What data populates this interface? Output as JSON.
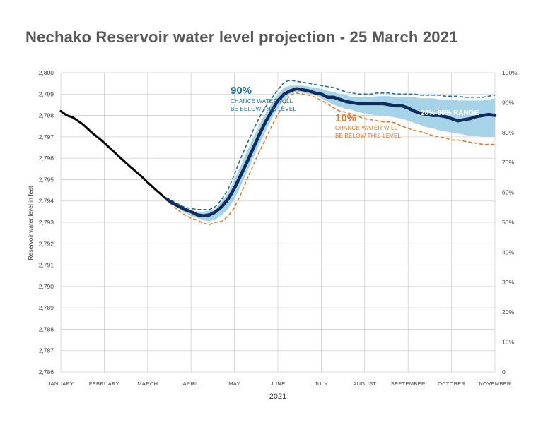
{
  "chart_data": {
    "type": "line",
    "title": "Nechako Reservoir water level projection - 25 March 2021",
    "xlabel": "2021",
    "ylabel": "Reservoir water level in feet",
    "ylim": [
      2786,
      2800
    ],
    "y2lim": [
      0,
      100
    ],
    "y_ticks": [
      "2,786",
      "2,787",
      "2,788",
      "2,789",
      "2,790",
      "2,791",
      "2,792",
      "2,793",
      "2,794",
      "2,795",
      "2,796",
      "2,797",
      "2,798",
      "2,799",
      "2,800"
    ],
    "y2_ticks": [
      "0",
      "10%",
      "20%",
      "30%",
      "40%",
      "50%",
      "60%",
      "70%",
      "80%",
      "90%",
      "100%"
    ],
    "months": [
      "JANUARY",
      "FEBRUARY",
      "MARCH",
      "APRIL",
      "MAY",
      "JUNE",
      "JULY",
      "AUGUST",
      "SEPTEMBER",
      "OCTOBER",
      "NOVEMBER"
    ],
    "grid": true,
    "colors": {
      "historical": "#000000",
      "median": "#0f2d5c",
      "p90": "#1f6fa3",
      "p10": "#e87722",
      "band": "#a6d3e8",
      "grid": "#cfcfcf",
      "title": "#58595b"
    },
    "annotations": {
      "p90_big": "90%",
      "p90_line1": "CHANCE WATER WILL",
      "p90_line2": "BE BELOW THIS LEVEL",
      "p10_big": "10%",
      "p10_line1": "CHANCE WATER WILL",
      "p10_line2": "BE BELOW THIS LEVEL",
      "range": "20%-80% RANGE"
    },
    "series": [
      {
        "key": "historical",
        "style": "solid",
        "x": [
          0,
          10,
          20,
          35,
          50,
          65,
          80,
          95,
          110,
          130,
          150,
          170
        ],
        "y": [
          2798.2,
          2798.0,
          2797.9,
          2797.6,
          2797.2,
          2796.85,
          2796.45,
          2796.05,
          2795.65,
          2795.15,
          2794.6,
          2794.1
        ]
      },
      {
        "key": "median",
        "style": "solid",
        "x": [
          170,
          180,
          190,
          200,
          210,
          220,
          230,
          240,
          250,
          260,
          270,
          280,
          290,
          300,
          310,
          320,
          330,
          340,
          350,
          360,
          370,
          380,
          390,
          400,
          410,
          420,
          430,
          440,
          450,
          460,
          470,
          480,
          490,
          500,
          510,
          520,
          530,
          540,
          550,
          560,
          570,
          580,
          590,
          600,
          610,
          620,
          630,
          640,
          650,
          660,
          670,
          680,
          690,
          700
        ],
        "y": [
          2794.1,
          2793.9,
          2793.75,
          2793.6,
          2793.5,
          2793.35,
          2793.3,
          2793.35,
          2793.5,
          2793.75,
          2794.1,
          2794.6,
          2795.2,
          2795.8,
          2796.45,
          2797.1,
          2797.7,
          2798.2,
          2798.7,
          2799.0,
          2799.15,
          2799.25,
          2799.2,
          2799.15,
          2799.05,
          2799.0,
          2798.85,
          2798.85,
          2798.75,
          2798.65,
          2798.6,
          2798.55,
          2798.55,
          2798.55,
          2798.55,
          2798.55,
          2798.5,
          2798.45,
          2798.45,
          2798.35,
          2798.2,
          2798.1,
          2798.05,
          2798.0,
          2798.0,
          2797.95,
          2797.85,
          2797.75,
          2797.8,
          2797.85,
          2797.95,
          2798.0,
          2798.05,
          2798.0
        ]
      },
      {
        "key": "p90",
        "style": "dashed",
        "x": [
          170,
          180,
          190,
          200,
          210,
          220,
          230,
          240,
          250,
          260,
          270,
          280,
          290,
          300,
          310,
          320,
          330,
          340,
          350,
          360,
          370,
          380,
          390,
          400,
          410,
          420,
          430,
          440,
          450,
          460,
          470,
          480,
          490,
          500,
          510,
          520,
          530,
          540,
          550,
          560,
          570,
          580,
          590,
          600,
          610,
          620,
          630,
          640,
          650,
          660,
          670,
          680,
          690,
          700
        ],
        "y": [
          2794.15,
          2794.0,
          2793.85,
          2793.7,
          2793.65,
          2793.6,
          2793.6,
          2793.6,
          2793.75,
          2794.1,
          2794.55,
          2795.25,
          2796.0,
          2796.65,
          2797.3,
          2797.9,
          2798.4,
          2798.8,
          2799.2,
          2799.55,
          2799.65,
          2799.6,
          2799.55,
          2799.5,
          2799.45,
          2799.4,
          2799.35,
          2799.3,
          2799.2,
          2799.1,
          2799.05,
          2799.0,
          2799.0,
          2799.0,
          2799.05,
          2799.05,
          2799.05,
          2799.0,
          2799.0,
          2799.0,
          2799.0,
          2798.95,
          2798.95,
          2798.95,
          2798.95,
          2798.9,
          2798.9,
          2798.9,
          2798.85,
          2798.85,
          2798.85,
          2798.85,
          2798.9,
          2798.95
        ]
      },
      {
        "key": "p10",
        "style": "dashed",
        "x": [
          170,
          180,
          190,
          200,
          210,
          220,
          230,
          240,
          250,
          260,
          270,
          280,
          290,
          300,
          310,
          320,
          330,
          340,
          350,
          360,
          370,
          380,
          390,
          400,
          410,
          420,
          430,
          440,
          450,
          460,
          470,
          480,
          490,
          500,
          510,
          520,
          530,
          540,
          550,
          560,
          570,
          580,
          590,
          600,
          610,
          620,
          630,
          640,
          650,
          660,
          670,
          680,
          690,
          700
        ],
        "y": [
          2794.1,
          2793.8,
          2793.55,
          2793.35,
          2793.2,
          2793.1,
          2792.95,
          2792.9,
          2793.0,
          2793.05,
          2793.3,
          2793.7,
          2794.3,
          2795.0,
          2795.65,
          2796.3,
          2796.9,
          2797.5,
          2798.05,
          2798.55,
          2798.95,
          2799.05,
          2799.0,
          2798.95,
          2798.85,
          2798.7,
          2798.55,
          2798.35,
          2798.2,
          2798.15,
          2798.05,
          2797.95,
          2797.85,
          2797.8,
          2797.75,
          2797.7,
          2797.7,
          2797.65,
          2797.5,
          2797.4,
          2797.3,
          2797.25,
          2797.15,
          2797.05,
          2797.0,
          2796.95,
          2796.85,
          2796.85,
          2796.8,
          2796.75,
          2796.7,
          2796.65,
          2796.65,
          2796.65
        ]
      },
      {
        "key": "p80",
        "style": "band-upper",
        "x": [
          170,
          180,
          190,
          200,
          210,
          220,
          230,
          240,
          250,
          260,
          270,
          280,
          290,
          300,
          310,
          320,
          330,
          340,
          350,
          360,
          370,
          380,
          390,
          400,
          410,
          420,
          430,
          440,
          450,
          460,
          470,
          480,
          490,
          500,
          510,
          520,
          530,
          540,
          550,
          560,
          570,
          580,
          590,
          600,
          610,
          620,
          630,
          640,
          650,
          660,
          670,
          680,
          690,
          700
        ],
        "y": [
          2794.15,
          2793.95,
          2793.8,
          2793.65,
          2793.55,
          2793.5,
          2793.5,
          2793.55,
          2793.65,
          2794.0,
          2794.4,
          2795.0,
          2795.65,
          2796.3,
          2796.95,
          2797.55,
          2798.1,
          2798.55,
          2799.0,
          2799.3,
          2799.4,
          2799.4,
          2799.4,
          2799.35,
          2799.3,
          2799.25,
          2799.15,
          2799.1,
          2799.0,
          2798.95,
          2798.85,
          2798.85,
          2798.85,
          2798.85,
          2798.9,
          2798.9,
          2798.9,
          2798.85,
          2798.85,
          2798.85,
          2798.85,
          2798.8,
          2798.8,
          2798.8,
          2798.75,
          2798.75,
          2798.75,
          2798.7,
          2798.7,
          2798.7,
          2798.7,
          2798.7,
          2798.75,
          2798.8
        ]
      },
      {
        "key": "p20",
        "style": "band-lower",
        "x": [
          170,
          180,
          190,
          200,
          210,
          220,
          230,
          240,
          250,
          260,
          270,
          280,
          290,
          300,
          310,
          320,
          330,
          340,
          350,
          360,
          370,
          380,
          390,
          400,
          410,
          420,
          430,
          440,
          450,
          460,
          470,
          480,
          490,
          500,
          510,
          520,
          530,
          540,
          550,
          560,
          570,
          580,
          590,
          600,
          610,
          620,
          630,
          640,
          650,
          660,
          670,
          680,
          690,
          700
        ],
        "y": [
          2794.05,
          2793.85,
          2793.65,
          2793.45,
          2793.3,
          2793.2,
          2793.1,
          2793.05,
          2793.15,
          2793.35,
          2793.65,
          2794.1,
          2794.7,
          2795.35,
          2796.0,
          2796.65,
          2797.25,
          2797.85,
          2798.35,
          2798.75,
          2799.0,
          2799.1,
          2799.05,
          2799.0,
          2798.95,
          2798.8,
          2798.65,
          2798.5,
          2798.4,
          2798.3,
          2798.25,
          2798.15,
          2798.1,
          2798.05,
          2798.0,
          2798.0,
          2797.95,
          2797.9,
          2797.85,
          2797.75,
          2797.65,
          2797.55,
          2797.45,
          2797.4,
          2797.3,
          2797.25,
          2797.2,
          2797.15,
          2797.1,
          2797.05,
          2797.05,
          2797.0,
          2797.0,
          2797.0
        ]
      }
    ]
  }
}
